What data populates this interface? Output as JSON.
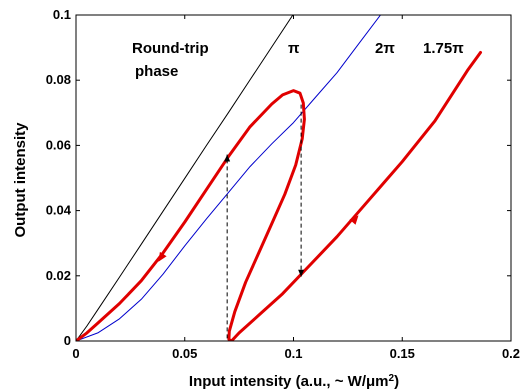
{
  "chart_data": {
    "type": "line",
    "xlabel": "Input intensity (a.u., ~ W/μm",
    "xlabel_sup": "2",
    "xlabel_end": ")",
    "ylabel": "Output intensity",
    "xlim": [
      0,
      0.2
    ],
    "ylim": [
      0,
      0.1
    ],
    "x_ticks": [
      0,
      0.05,
      0.1,
      0.15,
      0.2
    ],
    "x_tick_labels": [
      "0",
      "0.05",
      "0.1",
      "0.15",
      "0.2"
    ],
    "y_ticks": [
      0,
      0.02,
      0.04,
      0.06,
      0.08,
      0.1
    ],
    "y_tick_labels": [
      "0",
      "0.02",
      "0.04",
      "0.06",
      "0.08",
      "0.1"
    ],
    "grid": false,
    "annotations": {
      "phase_title_1": "Round-trip",
      "phase_title_2": "phase",
      "pi": "π",
      "two_pi": "2π",
      "one75_pi": "1.75π"
    },
    "series": [
      {
        "color": "#000000",
        "width": 1,
        "points": [
          [
            0,
            0
          ],
          [
            0.005,
            0.0046
          ],
          [
            0.01,
            0.0096
          ],
          [
            0.02,
            0.0196
          ],
          [
            0.03,
            0.0297
          ],
          [
            0.04,
            0.0398
          ],
          [
            0.05,
            0.0499
          ],
          [
            0.06,
            0.06
          ],
          [
            0.07,
            0.07
          ],
          [
            0.08,
            0.0801
          ],
          [
            0.09,
            0.0902
          ],
          [
            0.1,
            0.1003
          ]
        ]
      },
      {
        "color": "#0000cc",
        "width": 1,
        "points": [
          [
            0,
            0
          ],
          [
            0.01,
            0.0025
          ],
          [
            0.02,
            0.0068
          ],
          [
            0.03,
            0.0128
          ],
          [
            0.04,
            0.0205
          ],
          [
            0.05,
            0.0292
          ],
          [
            0.06,
            0.0375
          ],
          [
            0.07,
            0.0455
          ],
          [
            0.08,
            0.0535
          ],
          [
            0.09,
            0.0605
          ],
          [
            0.1,
            0.067
          ],
          [
            0.11,
            0.0747
          ],
          [
            0.12,
            0.0823
          ],
          [
            0.13,
            0.0912
          ],
          [
            0.14,
            0.1
          ]
        ]
      },
      {
        "color": "#e00000",
        "width": 3,
        "points": [
          [
            0,
            0
          ],
          [
            0.005,
            0.0025
          ],
          [
            0.01,
            0.0055
          ],
          [
            0.02,
            0.0115
          ],
          [
            0.03,
            0.0185
          ],
          [
            0.04,
            0.027
          ],
          [
            0.05,
            0.0365
          ],
          [
            0.06,
            0.0465
          ],
          [
            0.07,
            0.0565
          ],
          [
            0.08,
            0.0657
          ],
          [
            0.09,
            0.0727
          ],
          [
            0.095,
            0.0755
          ],
          [
            0.1,
            0.0768
          ],
          [
            0.103,
            0.076
          ],
          [
            0.1045,
            0.073
          ],
          [
            0.105,
            0.068
          ],
          [
            0.104,
            0.062
          ],
          [
            0.101,
            0.054
          ],
          [
            0.096,
            0.045
          ],
          [
            0.09,
            0.036
          ],
          [
            0.084,
            0.027
          ],
          [
            0.078,
            0.018
          ],
          [
            0.073,
            0.009
          ],
          [
            0.0705,
            0.003
          ],
          [
            0.0703,
            0.0005
          ],
          [
            0.0715,
            0
          ],
          [
            0.075,
            0.0025
          ],
          [
            0.085,
            0.0085
          ],
          [
            0.095,
            0.0145
          ],
          [
            0.105,
            0.0215
          ],
          [
            0.12,
            0.032
          ],
          [
            0.135,
            0.0435
          ],
          [
            0.15,
            0.055
          ],
          [
            0.165,
            0.0675
          ],
          [
            0.18,
            0.083
          ],
          [
            0.186,
            0.0885
          ]
        ]
      }
    ],
    "arrows": [
      {
        "x": 0.039,
        "y": 0.0255,
        "dir": "down-left"
      },
      {
        "x": 0.1285,
        "y": 0.0375,
        "dir": "up-right"
      }
    ],
    "jumps": [
      {
        "x": 0.0695,
        "y_from": 0.0008,
        "y_to": 0.0572
      },
      {
        "x": 0.1035,
        "y_from": 0.0725,
        "y_to": 0.0197
      }
    ]
  }
}
